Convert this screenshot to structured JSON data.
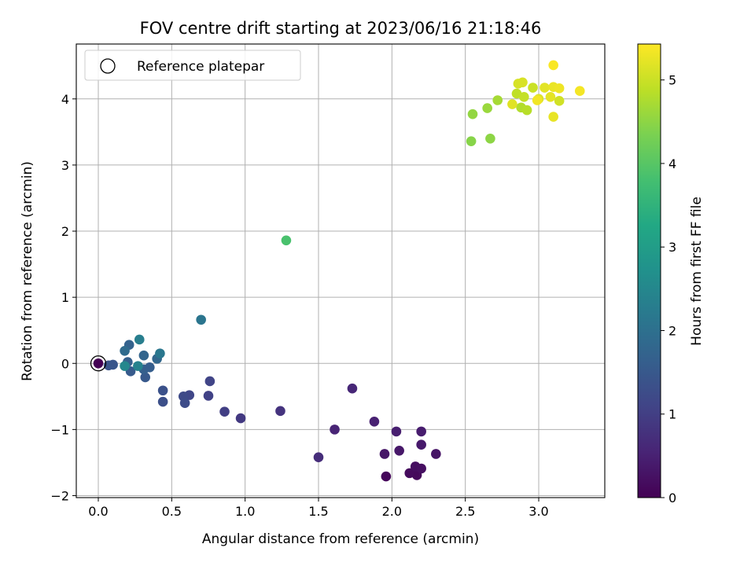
{
  "chart_data": {
    "type": "scatter",
    "title": "FOV centre drift starting at 2023/06/16 21:18:46",
    "xlabel": "Angular distance from reference (arcmin)",
    "ylabel": "Rotation from reference (arcmin)",
    "colorbar_label": "Hours from first FF file",
    "colormap": "viridis",
    "xlim": [
      -0.15,
      3.45
    ],
    "ylim": [
      -2.03,
      4.83
    ],
    "clim": [
      0,
      5.43
    ],
    "xticks": [
      0.0,
      0.5,
      1.0,
      1.5,
      2.0,
      2.5,
      3.0
    ],
    "xtick_labels": [
      "0.0",
      "0.5",
      "1.0",
      "1.5",
      "2.0",
      "2.5",
      "3.0"
    ],
    "yticks": [
      -2,
      -1,
      0,
      1,
      2,
      3,
      4
    ],
    "ytick_labels": [
      "−2",
      "−1",
      "0",
      "1",
      "2",
      "3",
      "4"
    ],
    "cticks": [
      0,
      1,
      2,
      3,
      4,
      5
    ],
    "ctick_labels": [
      "0",
      "1",
      "2",
      "3",
      "4",
      "5"
    ],
    "grid": true,
    "legend": {
      "placement": "upper-left",
      "entries": [
        "Reference platepar"
      ]
    },
    "reference_point": {
      "x": 0.0,
      "y": 0.0
    },
    "points": [
      {
        "x": 0.0,
        "y": 0.0,
        "hours": 0.0
      },
      {
        "x": 1.96,
        "y": -1.71,
        "hours": 0.1
      },
      {
        "x": 2.17,
        "y": -1.69,
        "hours": 0.12
      },
      {
        "x": 2.12,
        "y": -1.66,
        "hours": 0.15
      },
      {
        "x": 2.16,
        "y": -1.56,
        "hours": 0.2
      },
      {
        "x": 2.2,
        "y": -1.59,
        "hours": 0.22
      },
      {
        "x": 2.3,
        "y": -1.37,
        "hours": 0.3
      },
      {
        "x": 1.95,
        "y": -1.37,
        "hours": 0.32
      },
      {
        "x": 2.05,
        "y": -1.32,
        "hours": 0.35
      },
      {
        "x": 2.2,
        "y": -1.23,
        "hours": 0.38
      },
      {
        "x": 2.2,
        "y": -1.03,
        "hours": 0.42
      },
      {
        "x": 2.03,
        "y": -1.03,
        "hours": 0.45
      },
      {
        "x": 1.88,
        "y": -0.88,
        "hours": 0.5
      },
      {
        "x": 1.61,
        "y": -1.0,
        "hours": 0.55
      },
      {
        "x": 1.73,
        "y": -0.38,
        "hours": 0.6
      },
      {
        "x": 1.5,
        "y": -1.42,
        "hours": 0.7
      },
      {
        "x": 1.24,
        "y": -0.72,
        "hours": 0.8
      },
      {
        "x": 0.97,
        "y": -0.83,
        "hours": 0.9
      },
      {
        "x": 0.86,
        "y": -0.73,
        "hours": 1.0
      },
      {
        "x": 0.75,
        "y": -0.49,
        "hours": 1.05
      },
      {
        "x": 0.76,
        "y": -0.27,
        "hours": 1.1
      },
      {
        "x": 0.62,
        "y": -0.48,
        "hours": 1.15
      },
      {
        "x": 0.58,
        "y": -0.5,
        "hours": 1.2
      },
      {
        "x": 0.59,
        "y": -0.6,
        "hours": 1.25
      },
      {
        "x": 0.44,
        "y": -0.58,
        "hours": 1.3
      },
      {
        "x": 0.44,
        "y": -0.41,
        "hours": 1.35
      },
      {
        "x": 0.07,
        "y": -0.03,
        "hours": 1.4
      },
      {
        "x": 0.1,
        "y": -0.02,
        "hours": 1.45
      },
      {
        "x": 0.32,
        "y": -0.21,
        "hours": 1.5
      },
      {
        "x": 0.22,
        "y": -0.12,
        "hours": 1.55
      },
      {
        "x": 0.35,
        "y": -0.06,
        "hours": 1.6
      },
      {
        "x": 0.31,
        "y": -0.09,
        "hours": 1.62
      },
      {
        "x": 0.2,
        "y": 0.02,
        "hours": 1.65
      },
      {
        "x": 0.21,
        "y": 0.28,
        "hours": 1.7
      },
      {
        "x": 0.31,
        "y": 0.12,
        "hours": 1.75
      },
      {
        "x": 0.4,
        "y": 0.07,
        "hours": 1.8
      },
      {
        "x": 0.18,
        "y": 0.19,
        "hours": 1.9
      },
      {
        "x": 0.7,
        "y": 0.66,
        "hours": 2.1
      },
      {
        "x": 0.42,
        "y": 0.15,
        "hours": 2.15
      },
      {
        "x": 0.28,
        "y": 0.36,
        "hours": 2.3
      },
      {
        "x": 0.27,
        "y": -0.04,
        "hours": 2.4
      },
      {
        "x": 0.18,
        "y": -0.04,
        "hours": 2.5
      },
      {
        "x": 1.28,
        "y": 1.86,
        "hours": 3.85
      },
      {
        "x": 2.54,
        "y": 3.36,
        "hours": 4.45
      },
      {
        "x": 2.67,
        "y": 3.4,
        "hours": 4.5
      },
      {
        "x": 2.55,
        "y": 3.77,
        "hours": 4.55
      },
      {
        "x": 2.65,
        "y": 3.86,
        "hours": 4.6
      },
      {
        "x": 2.72,
        "y": 3.98,
        "hours": 4.7
      },
      {
        "x": 2.88,
        "y": 3.87,
        "hours": 4.8
      },
      {
        "x": 2.92,
        "y": 3.83,
        "hours": 4.85
      },
      {
        "x": 2.85,
        "y": 4.08,
        "hours": 4.9
      },
      {
        "x": 2.9,
        "y": 4.03,
        "hours": 4.95
      },
      {
        "x": 2.96,
        "y": 4.17,
        "hours": 5.0
      },
      {
        "x": 3.14,
        "y": 3.97,
        "hours": 5.05
      },
      {
        "x": 2.86,
        "y": 4.23,
        "hours": 5.1
      },
      {
        "x": 2.89,
        "y": 4.25,
        "hours": 5.12
      },
      {
        "x": 3.0,
        "y": 4.0,
        "hours": 5.15
      },
      {
        "x": 2.82,
        "y": 3.92,
        "hours": 5.18
      },
      {
        "x": 3.04,
        "y": 4.17,
        "hours": 5.2
      },
      {
        "x": 3.08,
        "y": 4.03,
        "hours": 5.22
      },
      {
        "x": 3.1,
        "y": 3.73,
        "hours": 5.25
      },
      {
        "x": 3.1,
        "y": 4.18,
        "hours": 5.27
      },
      {
        "x": 3.14,
        "y": 4.16,
        "hours": 5.3
      },
      {
        "x": 3.28,
        "y": 4.12,
        "hours": 5.35
      },
      {
        "x": 3.1,
        "y": 4.51,
        "hours": 5.4
      },
      {
        "x": 2.99,
        "y": 3.98,
        "hours": 5.33
      }
    ]
  }
}
